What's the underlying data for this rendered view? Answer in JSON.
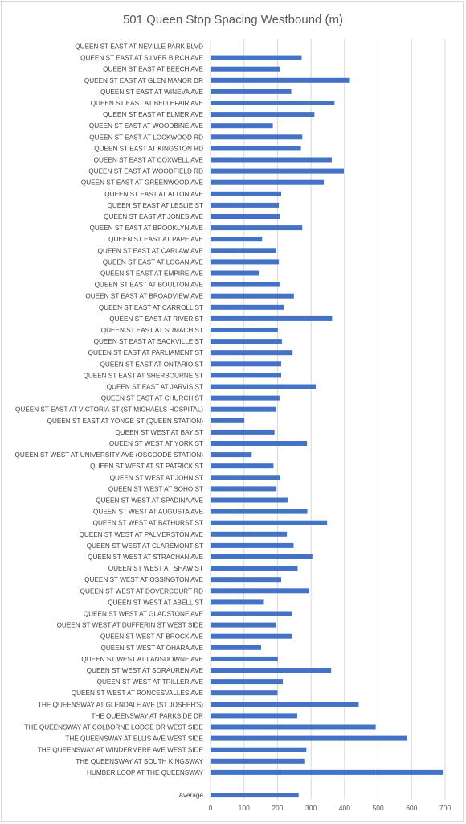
{
  "chart_data": {
    "type": "bar",
    "orientation": "horizontal",
    "title": "501 Queen Stop Spacing Westbound (m)",
    "xlabel": "",
    "ylabel": "",
    "xlim": [
      0,
      700
    ],
    "xticks": [
      0,
      100,
      200,
      300,
      400,
      500,
      600,
      700
    ],
    "grid": true,
    "bar_color": "#4472c4",
    "categories": [
      "QUEEN ST EAST AT NEVILLE PARK BLVD",
      "QUEEN ST EAST AT SILVER BIRCH AVE",
      "QUEEN ST EAST AT BEECH AVE",
      "QUEEN ST EAST AT GLEN MANOR DR",
      "QUEEN ST EAST AT WINEVA AVE",
      "QUEEN ST EAST AT BELLEFAIR AVE",
      "QUEEN ST EAST AT ELMER AVE",
      "QUEEN ST EAST AT WOODBINE AVE",
      "QUEEN ST EAST AT LOCKWOOD RD",
      "QUEEN ST EAST AT KINGSTON RD",
      "QUEEN ST EAST AT COXWELL AVE",
      "QUEEN ST EAST AT WOODFIELD RD",
      "QUEEN ST EAST AT GREENWOOD AVE",
      "QUEEN ST EAST AT ALTON AVE",
      "QUEEN ST EAST AT LESLIE ST",
      "QUEEN ST EAST AT JONES AVE",
      "QUEEN ST EAST AT BROOKLYN AVE",
      "QUEEN ST EAST AT PAPE AVE",
      "QUEEN ST EAST AT CARLAW AVE",
      "QUEEN ST EAST AT LOGAN AVE",
      "QUEEN ST EAST AT EMPIRE AVE",
      "QUEEN ST EAST AT BOULTON AVE",
      "QUEEN ST EAST AT BROADVIEW AVE",
      "QUEEN ST EAST AT CARROLL ST",
      "QUEEN ST EAST AT RIVER ST",
      "QUEEN ST EAST AT SUMACH ST",
      "QUEEN ST EAST AT SACKVILLE ST",
      "QUEEN ST EAST AT PARLIAMENT ST",
      "QUEEN ST EAST AT ONTARIO ST",
      "QUEEN ST EAST AT SHERBOURNE ST",
      "QUEEN ST EAST AT JARVIS ST",
      "QUEEN ST EAST AT CHURCH ST",
      "QUEEN ST EAST AT VICTORIA ST (ST MICHAELS HOSPITAL)",
      "QUEEN ST EAST AT YONGE ST (QUEEN STATION)",
      "QUEEN ST WEST AT BAY ST",
      "QUEEN ST WEST AT YORK ST",
      "QUEEN ST WEST AT UNIVERSITY AVE (OSGOODE STATION)",
      "QUEEN ST WEST AT ST PATRICK ST",
      "QUEEN ST WEST AT JOHN ST",
      "QUEEN ST WEST AT SOHO ST",
      "QUEEN ST WEST AT SPADINA AVE",
      "QUEEN ST WEST AT AUGUSTA AVE",
      "QUEEN ST WEST AT BATHURST ST",
      "QUEEN ST WEST AT PALMERSTON AVE",
      "QUEEN ST WEST AT CLAREMONT ST",
      "QUEEN ST WEST AT STRACHAN AVE",
      "QUEEN ST WEST AT SHAW ST",
      "QUEEN ST WEST AT OSSINGTON AVE",
      "QUEEN ST WEST AT DOVERCOURT RD",
      "QUEEN ST WEST AT ABELL ST",
      "QUEEN ST WEST AT GLADSTONE AVE",
      "QUEEN ST WEST AT DUFFERIN ST WEST SIDE",
      "QUEEN ST WEST AT BROCK AVE",
      "QUEEN ST WEST AT OHARA AVE",
      "QUEEN ST WEST AT LANSDOWNE AVE",
      "QUEEN ST WEST AT SORAUREN AVE",
      "QUEEN ST WEST AT TRILLER AVE",
      "QUEEN ST WEST AT RONCESVALLES AVE",
      "THE QUEENSWAY AT GLENDALE AVE (ST JOSEPH'S)",
      "THE QUEENSWAY AT PARKSIDE DR",
      "THE QUEENSWAY AT COLBORNE LODGE DR WEST SIDE",
      "THE QUEENSWAY AT ELLIS AVE WEST SIDE",
      "THE QUEENSWAY AT WINDERMERE AVE WEST SIDE",
      "THE QUEENSWAY AT SOUTH KINGSWAY",
      "HUMBER LOOP AT THE QUEENSWAY",
      "",
      "Average"
    ],
    "values": [
      0,
      272,
      208,
      416,
      241,
      370,
      310,
      186,
      274,
      270,
      362,
      398,
      338,
      211,
      204,
      207,
      274,
      154,
      196,
      204,
      144,
      206,
      249,
      219,
      363,
      201,
      213,
      245,
      211,
      211,
      314,
      206,
      195,
      101,
      191,
      288,
      123,
      188,
      208,
      197,
      230,
      289,
      348,
      228,
      248,
      304,
      260,
      211,
      294,
      157,
      243,
      195,
      244,
      151,
      201,
      360,
      216,
      200,
      442,
      259,
      493,
      587,
      286,
      280,
      693,
      null,
      263
    ]
  }
}
